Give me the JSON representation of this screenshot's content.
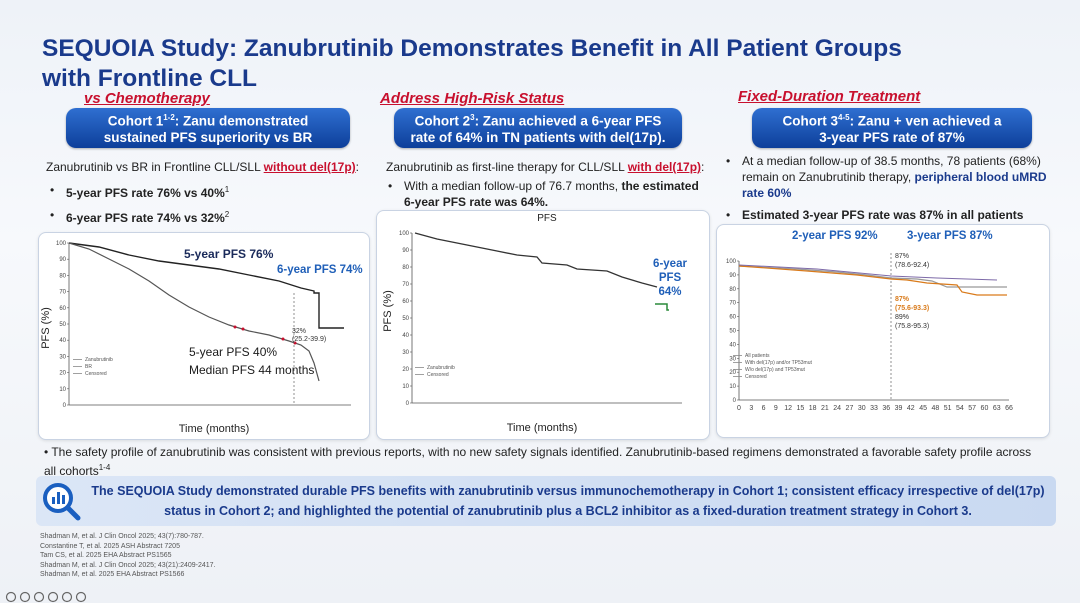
{
  "title": [
    "SEQUOIA Study:  Zanubrutinib Demonstrates Benefit in All Patient Groups",
    "with Frontline CLL"
  ],
  "panels": [
    {
      "label": "vs Chemotherapy",
      "header": [
        [
          {
            "text": "Cohort 1",
            "style": "plain"
          },
          {
            "text": "1-2",
            "style": "sup"
          },
          {
            "text": ":  Zanu demonstrated",
            "style": "plain"
          }
        ],
        [
          {
            "text": "sustained PFS superiority vs BR",
            "style": "plain"
          }
        ]
      ],
      "intro": [
        {
          "text": "Zanubrutinib vs BR in Frontline CLL/SLL ",
          "style": "plain"
        },
        {
          "text": "without del(17p)",
          "style": "red-under"
        },
        {
          "text": ":",
          "style": "plain"
        }
      ],
      "bullets": [
        [
          {
            "text": "5-year PFS rate 76% vs 40%",
            "style": "bold"
          },
          {
            "text": "1",
            "style": "sup"
          }
        ],
        [
          {
            "text": "6-year PFS rate 74% vs 32%",
            "style": "bold"
          },
          {
            "text": "2",
            "style": "sup"
          }
        ]
      ],
      "chart": {
        "y_label": "PFS (%)",
        "x_label": "Time (months)",
        "yticks": [
          "0",
          "10",
          "20",
          "30",
          "40",
          "50",
          "60",
          "70",
          "80",
          "90",
          "100"
        ],
        "legend": [
          "Zanubrutinib",
          "BR",
          "Censored"
        ],
        "annotations": [
          {
            "text": "5-year PFS 76%",
            "style": "ann-dark"
          },
          {
            "text": "6-year PFS 74%",
            "style": "ann-blue"
          },
          {
            "text": "32%",
            "style": "ann-small"
          },
          {
            "text": "(25.2-39.9)",
            "style": "ann-small"
          },
          {
            "text": "5-year PFS 40%",
            "style": "ann-dark-plain"
          },
          {
            "text": "Median PFS 44 months",
            "style": "ann-dark-plain"
          }
        ]
      }
    },
    {
      "label": "Address High-Risk Status",
      "header": [
        [
          {
            "text": "Cohort 2",
            "style": "plain"
          },
          {
            "text": "3",
            "style": "sup"
          },
          {
            "text": ":  Zanu achieved a 6-year PFS",
            "style": "plain"
          }
        ],
        [
          {
            "text": "rate of 64% in TN patients with del(17p).",
            "style": "plain"
          }
        ]
      ],
      "intro": [
        {
          "text": "Zanubrutinib as first-line therapy for CLL/SLL ",
          "style": "plain"
        },
        {
          "text": "with del(17p)",
          "style": "red-under"
        },
        {
          "text": ":",
          "style": "plain"
        }
      ],
      "bullets": [
        [
          {
            "text": "With a median follow-up of 76.7 months, ",
            "style": "plain"
          },
          {
            "text": "the estimated 6-year PFS rate was 64%.",
            "style": "bold"
          }
        ]
      ],
      "chart": {
        "title": "PFS",
        "y_label": "PFS (%)",
        "x_label": "Time (months)",
        "yticks": [
          "0",
          "10",
          "20",
          "30",
          "40",
          "50",
          "60",
          "70",
          "80",
          "90",
          "100"
        ],
        "legend": [
          "Zanubrutinib",
          "Censored"
        ],
        "annotations": [
          {
            "text": "6-year",
            "style": "ann-blue"
          },
          {
            "text": "PFS",
            "style": "ann-blue"
          },
          {
            "text": "64%",
            "style": "ann-blue"
          }
        ]
      }
    },
    {
      "label": "Fixed-Duration Treatment",
      "header": [
        [
          {
            "text": "Cohort 3",
            "style": "plain"
          },
          {
            "text": "4-5",
            "style": "sup"
          },
          {
            "text": ":  Zanu + ven achieved a",
            "style": "plain"
          }
        ],
        [
          {
            "text": "3-year PFS rate of 87%",
            "style": "plain"
          }
        ]
      ],
      "intro": [],
      "bullets": [
        [
          {
            "text": "At a median follow-up of 38.5 months, 78 patients (68%) remain on Zanubrutinib therapy, ",
            "style": "plain"
          },
          {
            "text": "peripheral blood uMRD rate 60%",
            "style": "blue-bold"
          }
        ],
        [
          {
            "text": "Estimated 3-year PFS rate was 87% in all patients",
            "style": "bold"
          }
        ]
      ],
      "chart": {
        "yticks": [
          "0",
          "10",
          "20",
          "30",
          "40",
          "50",
          "60",
          "70",
          "80",
          "90",
          "100"
        ],
        "xticks": [
          "0",
          "3",
          "6",
          "9",
          "12",
          "15",
          "18",
          "21",
          "24",
          "27",
          "30",
          "33",
          "36",
          "39",
          "42",
          "45",
          "48",
          "51",
          "54",
          "57",
          "60",
          "63",
          "66"
        ],
        "legend": [
          "All patients",
          "With del(17p) and/or TP53mut",
          "W/o del(17p) and TP53mut",
          "Censored"
        ],
        "annotations": [
          {
            "text": "2-year PFS 92%",
            "style": "ann-blue"
          },
          {
            "text": "3-year PFS 87%",
            "style": "ann-blue"
          },
          {
            "text": "87%",
            "style": "ann-small"
          },
          {
            "text": "(78.6-92.4)",
            "style": "ann-small"
          },
          {
            "text": "87%",
            "style": "ann-orange"
          },
          {
            "text": "(75.6-93.3)",
            "style": "ann-orange"
          },
          {
            "text": "89%",
            "style": "ann-small"
          },
          {
            "text": "(75.8-95.3)",
            "style": "ann-small"
          }
        ]
      }
    }
  ],
  "footer_bullet": [
    {
      "text": "The safety profile of zanubrutinib was consistent with previous reports, with no new safety signals identified. Zanubrutinib-based regimens demonstrated a favorable safety profile across all cohorts",
      "style": "plain"
    },
    {
      "text": "1-4",
      "style": "sup"
    }
  ],
  "summary": "The SEQUOIA Study demonstrated durable PFS benefits with zanubrutinib versus immunochemotherapy in Cohort 1; consistent efficacy irrespective of del(17p) status in Cohort 2; and highlighted the potential of zanubrutinib plus a BCL2 inhibitor as a fixed-duration treatment strategy in Cohort 3.",
  "references": [
    "Shadman M, et al. J Clin Oncol 2025; 43(7):780-787.",
    "Constantine T, et al. 2025 ASH Abstract 7205",
    "Tam CS, et al. 2025 EHA Abstract PS1565",
    "Shadman M, et al. J Clin Oncol 2025; 43(21):2409-2417.",
    "Shadman M, et al. 2025 EHA Abstract PS1566"
  ]
}
